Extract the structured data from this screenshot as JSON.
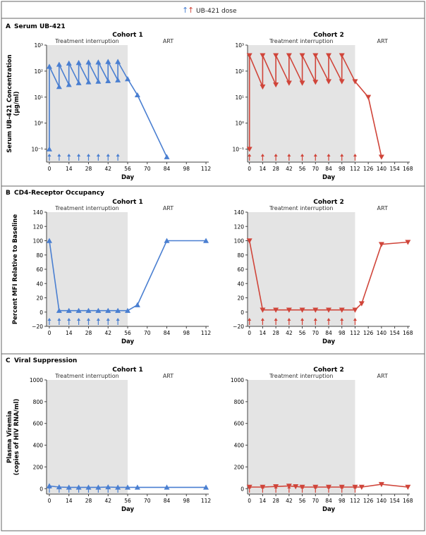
{
  "legend": {
    "label": "UB-421 dose",
    "colors": [
      "#4a7fd1",
      "#d0453a"
    ]
  },
  "panels": [
    {
      "letter": "A",
      "title": "Serum UB-421"
    },
    {
      "letter": "B",
      "title": "CD4-Receptor Occupancy"
    },
    {
      "letter": "C",
      "title": "Viral Suppression"
    }
  ],
  "colors": {
    "cohort1": "#4a7fd1",
    "cohort2": "#d0453a",
    "shade": "#e4e4e4",
    "arrow1": "#4a7fd1",
    "arrow2": "#d0453a"
  },
  "chart_data": [
    {
      "type": "line",
      "panel": "A",
      "cohort": "Cohort 1",
      "scale": "log",
      "title": "Cohort 1",
      "xlabel": "Day",
      "ylabel": "Serum UB-421 Concentration (µg/ml)",
      "region_labels": [
        "Treatment interruption",
        "ART"
      ],
      "xlim": [
        0,
        112
      ],
      "xticks": [
        "0",
        "14",
        "28",
        "42",
        "56",
        "70",
        "84",
        "98",
        "112"
      ],
      "ylim_log": [
        -1.5,
        3
      ],
      "yticks": [
        "10⁻¹",
        "10⁰",
        "10¹",
        "10²",
        "10³"
      ],
      "shade_until": 56,
      "dose_days": [
        0,
        7,
        14,
        21,
        28,
        35,
        42,
        49
      ],
      "marker": "up",
      "x": [
        0,
        0,
        0,
        7,
        7,
        14,
        14,
        21,
        21,
        28,
        28,
        35,
        35,
        42,
        42,
        49,
        49,
        56,
        63,
        84
      ],
      "values": [
        0.1,
        150,
        150,
        25,
        180,
        30,
        200,
        35,
        210,
        38,
        220,
        40,
        220,
        42,
        230,
        45,
        230,
        50,
        12,
        0.05
      ]
    },
    {
      "type": "line",
      "panel": "A",
      "cohort": "Cohort 2",
      "scale": "log",
      "title": "Cohort 2",
      "xlabel": "Day",
      "ylabel": "",
      "region_labels": [
        "Treatment interruption",
        "ART"
      ],
      "xlim": [
        0,
        168
      ],
      "xticks": [
        "0",
        "14",
        "28",
        "42",
        "56",
        "70",
        "84",
        "98",
        "112",
        "126",
        "140",
        "154",
        "168"
      ],
      "ylim_log": [
        -1.5,
        3
      ],
      "yticks": [
        "10⁻¹",
        "10⁰",
        "10¹",
        "10²",
        "10³"
      ],
      "shade_until": 112,
      "dose_days": [
        0,
        14,
        28,
        42,
        56,
        70,
        84,
        98,
        112
      ],
      "marker": "down",
      "x": [
        0,
        0,
        0,
        14,
        14,
        28,
        28,
        42,
        42,
        56,
        56,
        70,
        70,
        84,
        84,
        98,
        98,
        112,
        126,
        140
      ],
      "values": [
        0.1,
        400,
        400,
        25,
        400,
        30,
        400,
        35,
        400,
        35,
        400,
        38,
        400,
        40,
        400,
        40,
        400,
        40,
        10,
        0.05
      ]
    },
    {
      "type": "line",
      "panel": "B",
      "cohort": "Cohort 1",
      "scale": "linear",
      "title": "Cohort 1",
      "xlabel": "Day",
      "ylabel": "Percent MFI Relative to Baseline",
      "region_labels": [
        "Treatment interruption",
        "ART"
      ],
      "xlim": [
        0,
        112
      ],
      "xticks": [
        "0",
        "14",
        "28",
        "42",
        "56",
        "70",
        "84",
        "98",
        "112"
      ],
      "ylim": [
        -20,
        140
      ],
      "yticks": [
        "−20",
        "0",
        "20",
        "40",
        "60",
        "80",
        "100",
        "120",
        "140"
      ],
      "shade_until": 56,
      "dose_days": [
        0,
        7,
        14,
        21,
        28,
        35,
        42,
        49
      ],
      "marker": "up",
      "x": [
        0,
        7,
        14,
        21,
        28,
        35,
        42,
        49,
        56,
        63,
        84,
        112
      ],
      "values": [
        100,
        2,
        2,
        2,
        2,
        2,
        2,
        2,
        2,
        10,
        100,
        100
      ]
    },
    {
      "type": "line",
      "panel": "B",
      "cohort": "Cohort 2",
      "scale": "linear",
      "title": "Cohort 2",
      "xlabel": "Day",
      "ylabel": "",
      "region_labels": [
        "Treatment interruption",
        "ART"
      ],
      "xlim": [
        0,
        168
      ],
      "xticks": [
        "0",
        "14",
        "28",
        "42",
        "56",
        "70",
        "84",
        "98",
        "112",
        "126",
        "140",
        "154",
        "168"
      ],
      "ylim": [
        -20,
        140
      ],
      "yticks": [
        "−20",
        "0",
        "20",
        "40",
        "60",
        "80",
        "100",
        "120",
        "140"
      ],
      "shade_until": 112,
      "dose_days": [
        0,
        14,
        28,
        42,
        56,
        70,
        84,
        98,
        112
      ],
      "marker": "down",
      "x": [
        0,
        14,
        28,
        42,
        56,
        70,
        84,
        98,
        112,
        119,
        140,
        168
      ],
      "values": [
        100,
        3,
        3,
        3,
        3,
        3,
        3,
        3,
        3,
        12,
        95,
        98
      ]
    },
    {
      "type": "line",
      "panel": "C",
      "cohort": "Cohort 1",
      "scale": "linear",
      "title": "Cohort 1",
      "xlabel": "Day",
      "ylabel": "Plasma Viremia (copies of HIV RNA/ml)",
      "region_labels": [
        "Treatment interruption",
        "ART"
      ],
      "xlim": [
        0,
        112
      ],
      "xticks": [
        "0",
        "14",
        "28",
        "42",
        "56",
        "70",
        "84",
        "98",
        "112"
      ],
      "ylim": [
        -50,
        1000
      ],
      "yticks": [
        "0",
        "200",
        "400",
        "600",
        "800",
        "1000"
      ],
      "shade_until": 56,
      "dose_days": [
        0,
        7,
        14,
        21,
        28,
        35,
        42,
        49
      ],
      "marker": "up",
      "x": [
        0,
        7,
        14,
        21,
        28,
        35,
        42,
        49,
        56,
        63,
        84,
        112
      ],
      "values": [
        25,
        15,
        12,
        12,
        12,
        12,
        15,
        12,
        12,
        12,
        12,
        12
      ]
    },
    {
      "type": "line",
      "panel": "C",
      "cohort": "Cohort 2",
      "scale": "linear",
      "title": "Cohort 2",
      "xlabel": "Day",
      "ylabel": "",
      "region_labels": [
        "Treatment interruption",
        "ART"
      ],
      "xlim": [
        0,
        168
      ],
      "xticks": [
        "0",
        "14",
        "28",
        "42",
        "56",
        "70",
        "84",
        "98",
        "112",
        "126",
        "140",
        "154",
        "168"
      ],
      "ylim": [
        -50,
        1000
      ],
      "yticks": [
        "0",
        "200",
        "400",
        "600",
        "800",
        "1000"
      ],
      "shade_until": 112,
      "dose_days": [
        0,
        14,
        28,
        42,
        56,
        70,
        84,
        98,
        112
      ],
      "marker": "down",
      "x": [
        0,
        14,
        28,
        42,
        49,
        56,
        70,
        84,
        98,
        112,
        119,
        140,
        168
      ],
      "values": [
        15,
        15,
        20,
        25,
        20,
        15,
        15,
        15,
        15,
        15,
        15,
        40,
        15
      ]
    }
  ]
}
